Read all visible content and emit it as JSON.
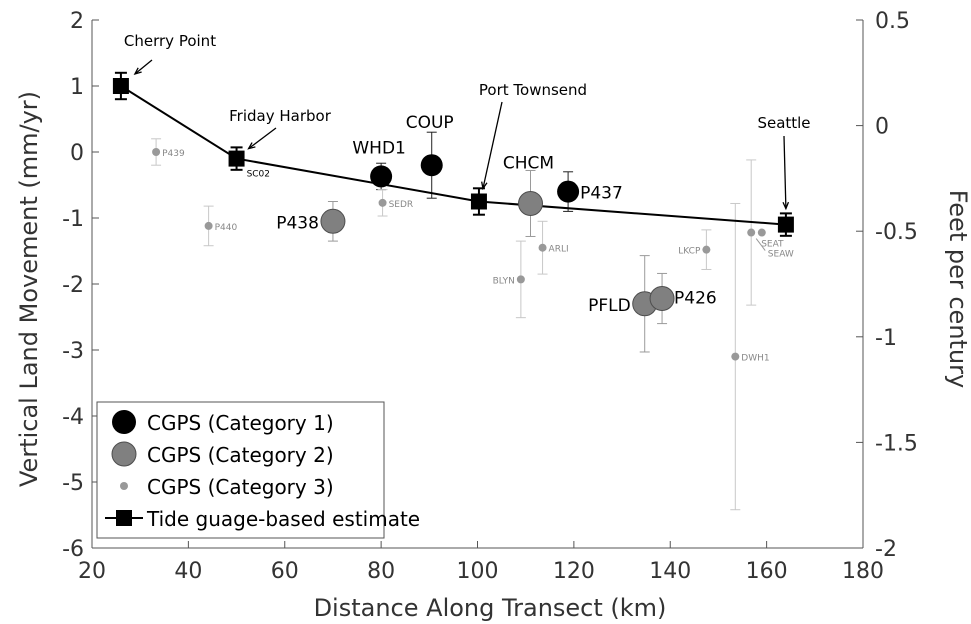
{
  "chart_data": {
    "type": "scatter",
    "xlabel": "Distance Along Transect (km)",
    "ylabel": "Vertical Land Movement (mm/yr)",
    "y2label": "Feet per century",
    "xlim": [
      20,
      180
    ],
    "ylim": [
      -6,
      2
    ],
    "y2lim": [
      -2,
      0.5
    ],
    "xticks": [
      "20",
      "40",
      "60",
      "80",
      "100",
      "120",
      "140",
      "160",
      "180"
    ],
    "yticks": [
      "-6",
      "-5",
      "-4",
      "-3",
      "-2",
      "-1",
      "0",
      "1",
      "2"
    ],
    "y2ticks": [
      "-2",
      "-1.5",
      "-1",
      "-0.5",
      "0",
      "0.5"
    ],
    "grid": false,
    "legend_position": "bottom-left",
    "colors": {
      "cat1": "#000000",
      "cat2": "#808080",
      "cat3": "#999999",
      "error_light": "#c8c8c8"
    },
    "legend": [
      {
        "label": "CGPS (Category 1)",
        "kind": "cat1"
      },
      {
        "label": "CGPS (Category 2)",
        "kind": "cat2"
      },
      {
        "label": "CGPS (Category 3)",
        "kind": "cat3"
      },
      {
        "label": "Tide guage-based estimate",
        "kind": "tide"
      }
    ],
    "series": [
      {
        "name": "CGPS (Category 1)",
        "points": [
          {
            "label": "WHD1",
            "x": 80.0,
            "y": -0.37,
            "err": 0.2
          },
          {
            "label": "COUP",
            "x": 90.5,
            "y": -0.2,
            "err": 0.5
          },
          {
            "label": "P437",
            "x": 118.8,
            "y": -0.6,
            "err": 0.3
          }
        ]
      },
      {
        "name": "CGPS (Category 2)",
        "points": [
          {
            "label": "P438",
            "x": 70.0,
            "y": -1.05,
            "err": 0.3
          },
          {
            "label": "CHCM",
            "x": 111.0,
            "y": -0.78,
            "err": 0.5
          },
          {
            "label": "PFLD",
            "x": 134.7,
            "y": -2.3,
            "err": 0.73
          },
          {
            "label": "P426",
            "x": 138.3,
            "y": -2.22,
            "err": 0.38
          }
        ]
      },
      {
        "name": "CGPS (Category 3)",
        "points": [
          {
            "label": "P439",
            "x": 33.3,
            "y": 0.0,
            "err": 0.2
          },
          {
            "label": "P440",
            "x": 44.2,
            "y": -1.12,
            "err": 0.3
          },
          {
            "label": "SEDR",
            "x": 80.3,
            "y": -0.77,
            "err": 0.2
          },
          {
            "label": "BLYN",
            "x": 109.0,
            "y": -1.93,
            "err": 0.58
          },
          {
            "label": "ARLI",
            "x": 113.5,
            "y": -1.45,
            "err": 0.4
          },
          {
            "label": "LKCP",
            "x": 147.5,
            "y": -1.48,
            "err": 0.3
          },
          {
            "label": "DWH1",
            "x": 153.5,
            "y": -3.1,
            "err": 2.32
          },
          {
            "label": "SEAT",
            "x": 156.8,
            "y": -1.22,
            "err": 1.1
          },
          {
            "label": "SEAW",
            "x": 159.0,
            "y": -1.22,
            "err": 0.0
          }
        ]
      },
      {
        "name": "Tide guage-based estimate",
        "points": [
          {
            "label": "Cherry Point",
            "x": 26.0,
            "y": 1.0,
            "err": 0.2
          },
          {
            "label": "Friday Harbor",
            "x": 50.0,
            "y": -0.1,
            "err": 0.17
          },
          {
            "label": "Port Townsend",
            "x": 100.3,
            "y": -0.75,
            "err": 0.2
          },
          {
            "label": "Seattle",
            "x": 164.0,
            "y": -1.1,
            "err": 0.17
          }
        ]
      }
    ],
    "annotations": [
      "Cherry Point",
      "Friday Harbor",
      "SC02",
      "Port Townsend",
      "Seattle"
    ]
  }
}
